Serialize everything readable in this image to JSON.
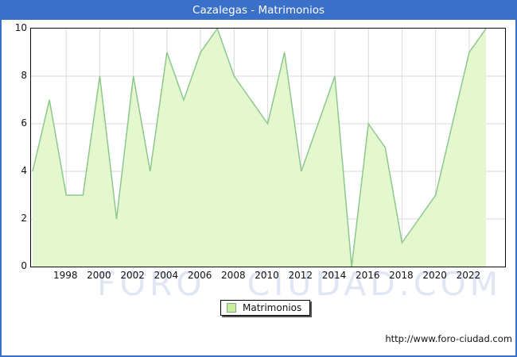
{
  "title": "Cazalegas - Matrimonios",
  "watermark": "FORO CIUDAD.COM",
  "legend": {
    "label": "Matrimonios"
  },
  "footer": {
    "url": "http://www.foro-ciudad.com"
  },
  "colors": {
    "frame_blue": "#3b70c8",
    "title_text": "#ffffff",
    "plot_border": "#0a0a0a",
    "gridline": "#dadada",
    "area_fill": "#e4f7cf",
    "area_stroke": "#8cc88c",
    "legend_swatch_fill": "#c9ef9e",
    "legend_swatch_border": "#7da87d"
  },
  "chart_data": {
    "type": "area",
    "title": "Cazalegas - Matrimonios",
    "legend_entries": [
      "Matrimonios"
    ],
    "legend_position": "bottom",
    "grid": true,
    "x": [
      1996,
      1997,
      1998,
      1999,
      2000,
      2001,
      2002,
      2003,
      2004,
      2005,
      2006,
      2007,
      2008,
      2009,
      2010,
      2011,
      2012,
      2013,
      2014,
      2015,
      2016,
      2017,
      2018,
      2019,
      2020,
      2021,
      2022,
      2023
    ],
    "values": [
      4,
      7,
      3,
      3,
      8,
      2,
      8,
      4,
      9,
      7,
      9,
      10,
      8,
      7,
      6,
      9,
      4,
      6,
      8,
      0,
      6,
      5,
      1,
      2,
      3,
      6,
      9,
      10
    ],
    "ylim": [
      0,
      10
    ],
    "yticks": [
      0,
      2,
      4,
      6,
      8,
      10
    ],
    "xticks": [
      1998,
      2000,
      2002,
      2004,
      2006,
      2008,
      2010,
      2012,
      2014,
      2016,
      2018,
      2020,
      2022
    ],
    "xlabel": "",
    "ylabel": ""
  }
}
